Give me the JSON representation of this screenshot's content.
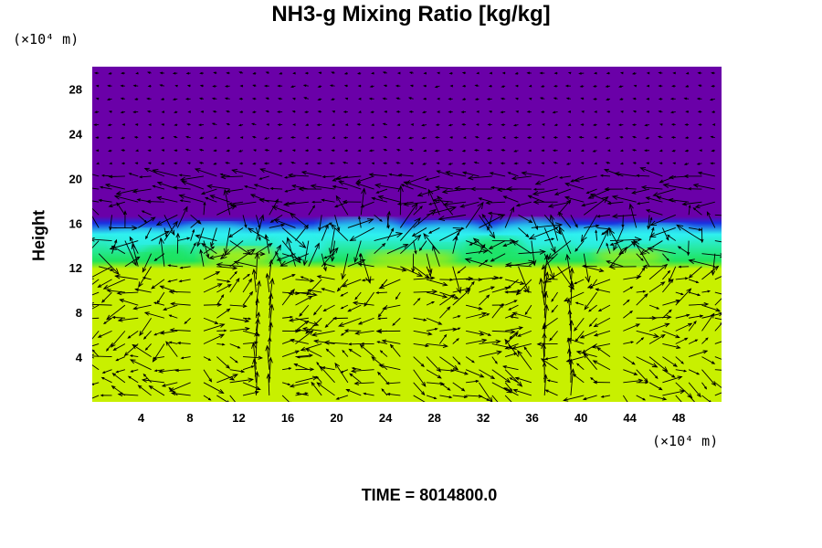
{
  "chart_data": {
    "type": "heatmap",
    "title": "NH3-g Mixing Ratio [kg/kg]",
    "ylabel": "Height",
    "xlabel": "",
    "x_unit": "(×10⁴ m)",
    "y_unit": "(×10⁴ m)",
    "x_ticks": [
      4,
      8,
      12,
      16,
      20,
      24,
      28,
      32,
      36,
      40,
      44,
      48
    ],
    "y_ticks": [
      4,
      8,
      12,
      16,
      20,
      24,
      28
    ],
    "xlim": [
      0,
      51.5
    ],
    "ylim": [
      0,
      30
    ],
    "overlay": "wind vector arrows",
    "layers": [
      {
        "from_y": 0,
        "to_y": 12.2,
        "color": "#c8f000"
      },
      {
        "from_y": 12.2,
        "to_y": 16.3,
        "color": "#1fe35a"
      },
      {
        "from_y": 16.3,
        "to_y": 30,
        "color": "#6a00a8"
      }
    ],
    "cloud_band_color": "#2ff0f0",
    "interface_color": "#1a30e0"
  },
  "time_label": "TIME = 8014800.0"
}
